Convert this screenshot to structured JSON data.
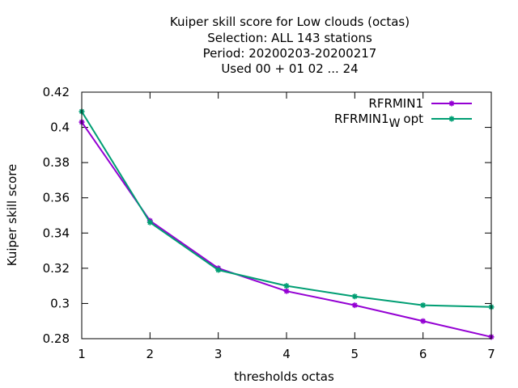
{
  "chart_data": {
    "type": "line",
    "title_lines": [
      "Kuiper skill score  for Low clouds (octas)",
      "Selection: ALL    143 stations",
      "Period: 20200203-20200217",
      "Used  00 + 01 02 ... 24"
    ],
    "xlabel": "thresholds octas",
    "ylabel": "Kuiper skill score",
    "x": [
      1,
      2,
      3,
      4,
      5,
      6,
      7
    ],
    "xlim": [
      1,
      7
    ],
    "ylim": [
      0.28,
      0.42
    ],
    "x_ticks": [
      "1",
      "2",
      "3",
      "4",
      "5",
      "6",
      "7"
    ],
    "y_ticks": [
      "0.28",
      "0.3",
      "0.32",
      "0.34",
      "0.36",
      "0.38",
      "0.4",
      "0.42"
    ],
    "grid": false,
    "legend_position": "top-right",
    "series": [
      {
        "name": "RFRMIN1",
        "color": "#9400d3",
        "values": [
          0.403,
          0.347,
          0.32,
          0.307,
          0.299,
          0.29,
          0.281
        ]
      },
      {
        "name": "RFRMIN1",
        "name_subscript": "W",
        "name_suffix": "opt",
        "color": "#009e73",
        "values": [
          0.409,
          0.346,
          0.319,
          0.31,
          0.304,
          0.299,
          0.298
        ]
      }
    ]
  }
}
